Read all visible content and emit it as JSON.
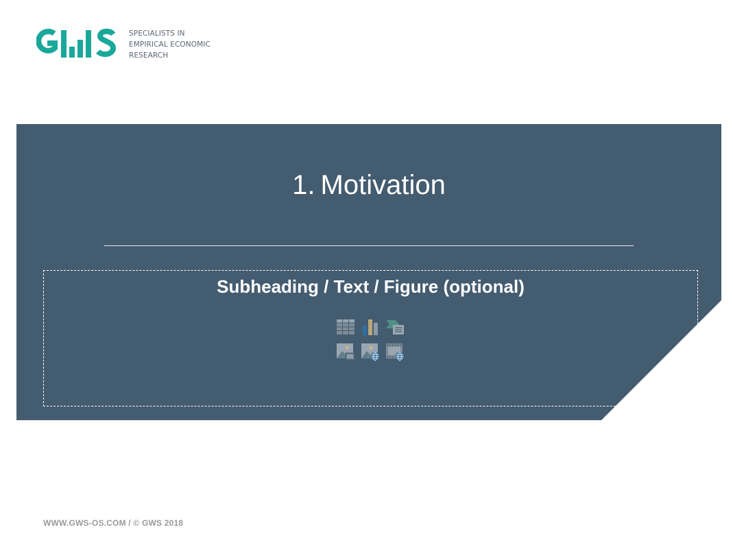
{
  "logo": {
    "wordmark": "GWS",
    "tagline_lines": [
      "SPECIALISTS IN",
      "EMPIRICAL ECONOMIC",
      "RESEARCH"
    ]
  },
  "slide": {
    "title_number": "1.",
    "title_text": "Motivation",
    "placeholder_prompt": "Subheading / Text / Figure (optional)"
  },
  "insert_icons": [
    "table-icon",
    "chart-icon",
    "smartart-icon",
    "picture-icon",
    "online-picture-icon",
    "video-icon"
  ],
  "footer": {
    "text": "WWW.GWS-OS.COM / © GWS 2018"
  },
  "colors": {
    "brand_teal": "#1aa89b",
    "panel": "#445c70",
    "text_gray": "#5c6670",
    "footer_gray": "#9a9a9a"
  }
}
